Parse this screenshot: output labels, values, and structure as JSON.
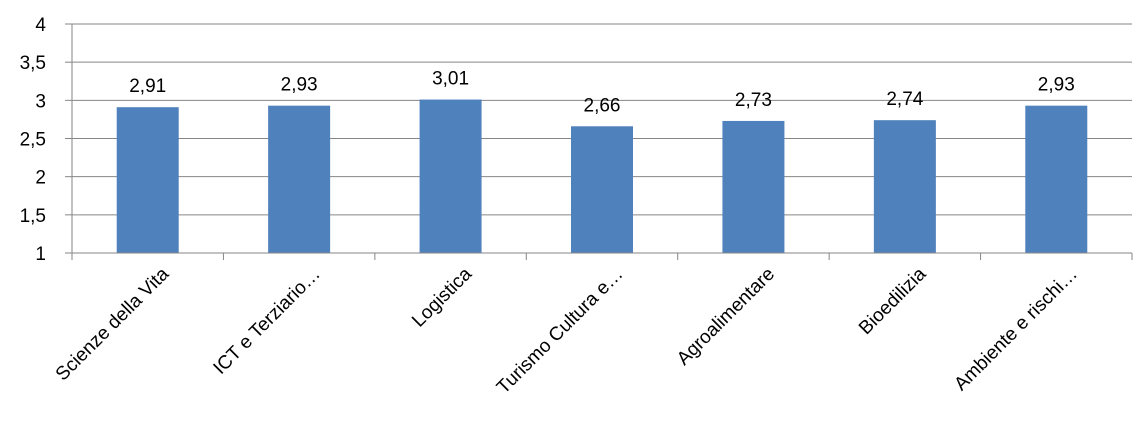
{
  "chart_data": {
    "type": "bar",
    "categories": [
      "Scienze della Vita",
      "ICT e Terziario…",
      "Logistica",
      "Turismo Cultura e…",
      "Agroalimentare",
      "Bioedilizia",
      "Ambiente e rischi…"
    ],
    "values": [
      2.91,
      2.93,
      3.01,
      2.66,
      2.73,
      2.74,
      2.93
    ],
    "value_labels": [
      "2,91",
      "2,93",
      "3,01",
      "2,66",
      "2,73",
      "2,74",
      "2,93"
    ],
    "title": "",
    "xlabel": "",
    "ylabel": "",
    "ylim": [
      1,
      4
    ],
    "y_ticks": [
      1,
      1.5,
      2,
      2.5,
      3,
      3.5,
      4
    ],
    "y_tick_labels": [
      "1",
      "1,5",
      "2",
      "2,5",
      "3",
      "3,5",
      "4"
    ],
    "grid": true,
    "legend": "none",
    "bar_color": "#4F81BD",
    "grid_color": "#868686"
  }
}
